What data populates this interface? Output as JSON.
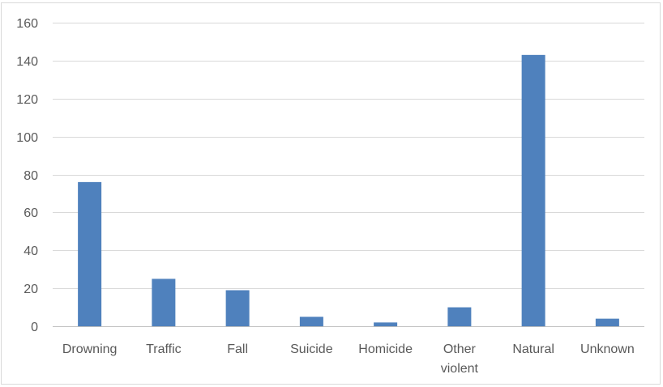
{
  "chart_data": {
    "type": "bar",
    "title": "",
    "xlabel": "",
    "ylabel": "",
    "categories": [
      "Drowning",
      "Traffic",
      "Fall",
      "Suicide",
      "Homicide",
      "Other violent",
      "Natural",
      "Unknown"
    ],
    "category_lines": [
      [
        "Drowning"
      ],
      [
        "Traffic"
      ],
      [
        "Fall"
      ],
      [
        "Suicide"
      ],
      [
        "Homicide"
      ],
      [
        "Other",
        "violent"
      ],
      [
        "Natural"
      ],
      [
        "Unknown"
      ]
    ],
    "values": [
      76,
      25,
      19,
      5,
      2,
      10,
      143,
      4
    ],
    "ylim": [
      0,
      160
    ],
    "yticks": [
      0,
      20,
      40,
      60,
      80,
      100,
      120,
      140,
      160
    ],
    "grid": true,
    "legend": "none",
    "colors": {
      "bar": "#4f81bd",
      "grid": "#d9d9d9",
      "axis": "#bfbfbf"
    }
  }
}
